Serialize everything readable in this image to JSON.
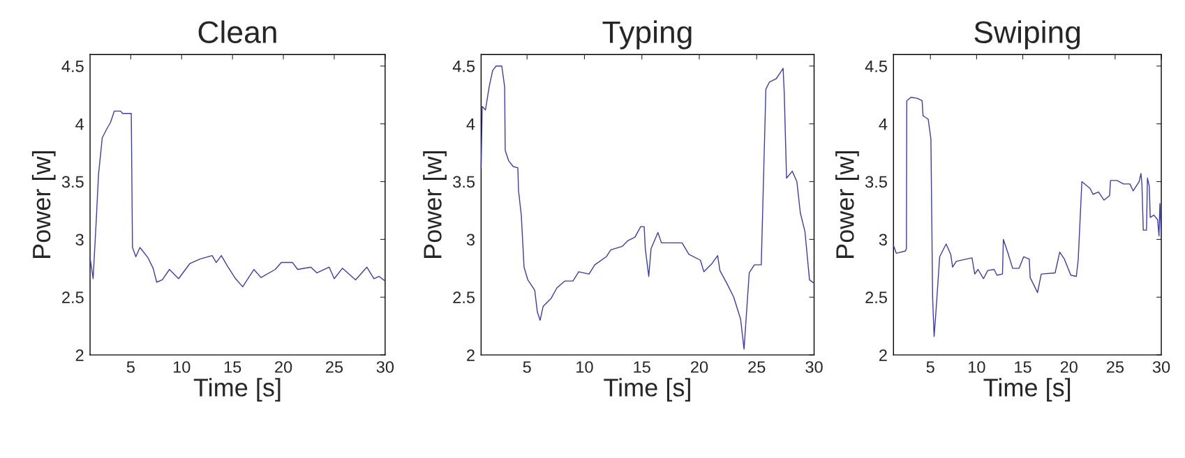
{
  "chart_data": [
    {
      "type": "line",
      "title": "Clean",
      "xlabel": "Time [s]",
      "ylabel": "Power [w]",
      "xlim": [
        1,
        30
      ],
      "ylim": [
        2,
        4.6
      ],
      "xticks": [
        5,
        10,
        15,
        20,
        25,
        30
      ],
      "yticks": [
        2,
        2.5,
        3,
        3.5,
        4,
        4.5
      ],
      "grid": false,
      "series": [
        {
          "color": "#3a3ab8",
          "x": [
            1.0,
            1.3,
            1.6,
            1.83,
            2.2,
            2.67,
            3.0,
            3.38,
            4.0,
            4.2,
            5.05,
            5.17,
            5.5,
            5.9,
            6.7,
            7.2,
            7.55,
            8.1,
            8.8,
            9.7,
            10.8,
            11.8,
            13.0,
            13.4,
            13.9,
            14.5,
            15.3,
            16.0,
            17.1,
            17.8,
            19.2,
            19.8,
            20.9,
            21.4,
            22.7,
            23.3,
            24.5,
            25.0,
            25.8,
            27.1,
            28.2,
            28.9,
            29.4,
            30
          ],
          "values": [
            2.84,
            2.66,
            3.15,
            3.56,
            3.88,
            3.96,
            4.01,
            4.11,
            4.11,
            4.09,
            4.09,
            2.93,
            2.85,
            2.93,
            2.84,
            2.75,
            2.63,
            2.65,
            2.74,
            2.66,
            2.79,
            2.83,
            2.86,
            2.8,
            2.86,
            2.77,
            2.66,
            2.59,
            2.74,
            2.67,
            2.74,
            2.8,
            2.8,
            2.74,
            2.76,
            2.71,
            2.76,
            2.66,
            2.75,
            2.65,
            2.76,
            2.66,
            2.68,
            2.64
          ]
        }
      ]
    },
    {
      "type": "line",
      "title": "Typing",
      "xlabel": "Time [s]",
      "ylabel": "Power [w]",
      "xlim": [
        1,
        30
      ],
      "ylim": [
        2,
        4.6
      ],
      "xticks": [
        5,
        10,
        15,
        20,
        25,
        30
      ],
      "yticks": [
        2,
        2.5,
        3,
        3.5,
        4,
        4.5
      ],
      "grid": false,
      "series": [
        {
          "color": "#3a3ab8",
          "x": [
            1.0,
            1.1,
            1.38,
            1.7,
            2.0,
            2.3,
            2.8,
            3.05,
            3.1,
            3.4,
            3.8,
            4.2,
            4.26,
            4.5,
            4.74,
            5.07,
            5.67,
            5.9,
            6.14,
            6.4,
            7.1,
            7.6,
            8.3,
            9.0,
            9.5,
            10.4,
            10.9,
            11.9,
            12.3,
            13.3,
            13.8,
            14.4,
            14.9,
            15.2,
            15.3,
            15.6,
            15.8,
            16.4,
            16.7,
            17.8,
            18.5,
            19.1,
            20.1,
            20.4,
            21.1,
            21.6,
            21.8,
            22.4,
            23.0,
            23.6,
            23.9,
            24.35,
            24.8,
            25.4,
            25.8,
            26.1,
            26.7,
            27.1,
            27.3,
            27.4,
            27.6,
            28.1,
            28.5,
            28.8,
            29.2,
            29.6,
            30
          ],
          "values": [
            3.62,
            4.15,
            4.12,
            4.32,
            4.46,
            4.5,
            4.5,
            4.32,
            3.77,
            3.68,
            3.63,
            3.62,
            3.42,
            3.21,
            2.76,
            2.65,
            2.56,
            2.37,
            2.3,
            2.42,
            2.49,
            2.58,
            2.64,
            2.64,
            2.72,
            2.7,
            2.78,
            2.85,
            2.91,
            2.94,
            2.99,
            3.02,
            3.11,
            3.11,
            2.92,
            2.68,
            2.92,
            3.06,
            2.97,
            2.97,
            2.97,
            2.87,
            2.82,
            2.72,
            2.79,
            2.86,
            2.73,
            2.62,
            2.5,
            2.31,
            2.05,
            2.71,
            2.78,
            2.78,
            4.3,
            4.36,
            4.39,
            4.45,
            4.48,
            4.27,
            3.53,
            3.59,
            3.5,
            3.23,
            3.07,
            2.65,
            2.62
          ]
        }
      ]
    },
    {
      "type": "line",
      "title": "Swiping",
      "xlabel": "Time [s]",
      "ylabel": "Power [w]",
      "xlim": [
        1,
        30
      ],
      "ylim": [
        2,
        4.6
      ],
      "xticks": [
        5,
        10,
        15,
        20,
        25,
        30
      ],
      "yticks": [
        2,
        2.5,
        3,
        3.5,
        4,
        4.5
      ],
      "grid": false,
      "series": [
        {
          "color": "#3a3ab8",
          "x": [
            1.0,
            1.3,
            2.3,
            2.4,
            2.44,
            2.9,
            3.6,
            4.1,
            4.2,
            4.76,
            5.05,
            5.24,
            5.4,
            5.64,
            6.0,
            6.7,
            7.2,
            7.4,
            7.8,
            9.5,
            9.8,
            10.15,
            10.75,
            11.2,
            11.9,
            12.2,
            12.8,
            12.9,
            13.4,
            13.9,
            14.6,
            15.1,
            15.7,
            15.8,
            16.6,
            17.0,
            18.5,
            19.0,
            19.5,
            20.2,
            20.8,
            21.0,
            21.4,
            22.3,
            22.6,
            23.2,
            23.8,
            24.4,
            24.5,
            25.2,
            25.9,
            26.6,
            26.95,
            27.6,
            27.8,
            27.9,
            28.05,
            28.4,
            28.5,
            28.7,
            28.8,
            29.2,
            29.6,
            29.75,
            29.85,
            30
          ],
          "values": [
            2.95,
            2.88,
            2.9,
            2.92,
            4.2,
            4.23,
            4.22,
            4.2,
            4.07,
            4.04,
            3.87,
            2.49,
            2.16,
            2.42,
            2.85,
            2.96,
            2.87,
            2.76,
            2.81,
            2.84,
            2.7,
            2.74,
            2.66,
            2.73,
            2.74,
            2.69,
            2.7,
            3.0,
            2.88,
            2.75,
            2.75,
            2.85,
            2.83,
            2.67,
            2.54,
            2.7,
            2.71,
            2.89,
            2.83,
            2.69,
            2.68,
            2.82,
            3.5,
            3.44,
            3.39,
            3.41,
            3.34,
            3.38,
            3.51,
            3.51,
            3.48,
            3.48,
            3.42,
            3.5,
            3.57,
            3.48,
            3.08,
            3.08,
            3.53,
            3.46,
            3.19,
            3.21,
            3.17,
            3.03,
            3.31,
            3.01
          ]
        }
      ]
    }
  ]
}
